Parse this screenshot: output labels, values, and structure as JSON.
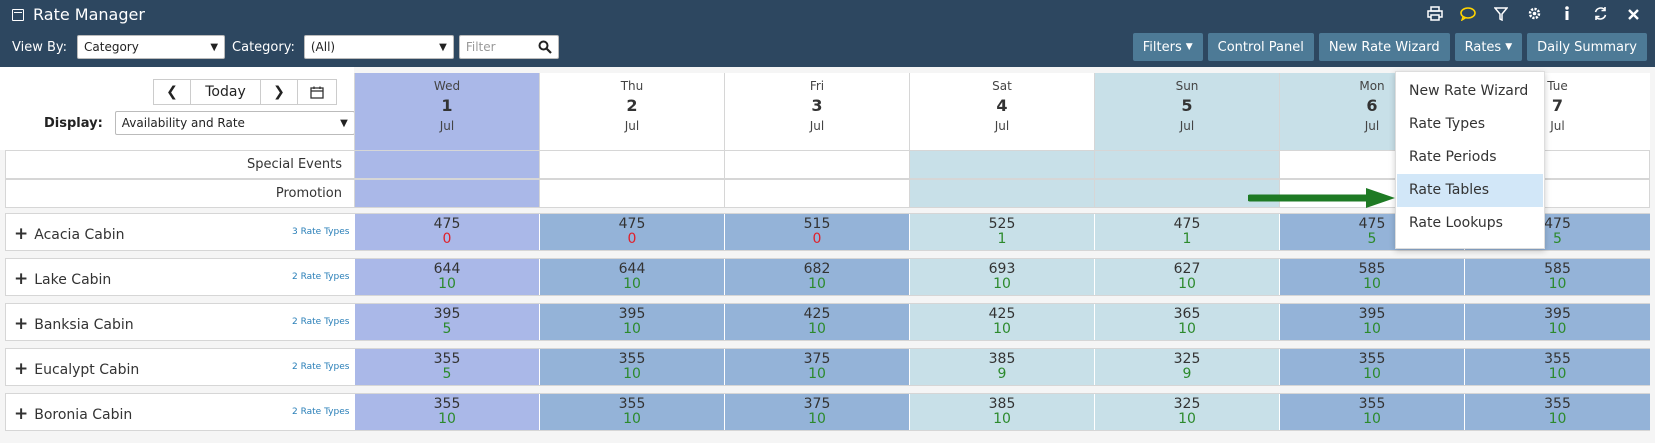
{
  "app": {
    "title": "Rate Manager",
    "title_icon": "calendar-icon"
  },
  "top_icons": [
    "print-icon",
    "chat-icon",
    "filter-icon",
    "gear-icon",
    "info-icon",
    "refresh-icon",
    "close-icon"
  ],
  "filters": {
    "view_by_label": "View By:",
    "view_by_value": "Category",
    "category_label": "Category:",
    "category_value": "(All)",
    "filter_placeholder": "Filter"
  },
  "toolbar": {
    "filters": "Filters",
    "control_panel": "Control Panel",
    "new_rate_wizard": "New Rate Wizard",
    "rates": "Rates",
    "daily_summary": "Daily Summary"
  },
  "nav": {
    "today": "Today"
  },
  "display": {
    "label": "Display:",
    "value": "Availability and Rate"
  },
  "days": [
    {
      "dow": "Wed",
      "num": "1",
      "mon": "Jul"
    },
    {
      "dow": "Thu",
      "num": "2",
      "mon": "Jul"
    },
    {
      "dow": "Fri",
      "num": "3",
      "mon": "Jul"
    },
    {
      "dow": "Sat",
      "num": "4",
      "mon": "Jul"
    },
    {
      "dow": "Sun",
      "num": "5",
      "mon": "Jul"
    },
    {
      "dow": "Mon",
      "num": "6",
      "mon": "Jul"
    },
    {
      "dow": "Tue",
      "num": "7",
      "mon": "Jul"
    }
  ],
  "event_rows": [
    "Special Events",
    "Promotion"
  ],
  "rooms": [
    {
      "name": "Acacia Cabin",
      "rate_types": "3 Rate Types",
      "cells": [
        [
          "475",
          "0"
        ],
        [
          "475",
          "0"
        ],
        [
          "515",
          "0"
        ],
        [
          "525",
          "1"
        ],
        [
          "475",
          "1"
        ],
        [
          "475",
          "5"
        ],
        [
          "475",
          "5"
        ]
      ]
    },
    {
      "name": "Lake Cabin",
      "rate_types": "2 Rate Types",
      "cells": [
        [
          "644",
          "10"
        ],
        [
          "644",
          "10"
        ],
        [
          "682",
          "10"
        ],
        [
          "693",
          "10"
        ],
        [
          "627",
          "10"
        ],
        [
          "585",
          "10"
        ],
        [
          "585",
          "10"
        ]
      ]
    },
    {
      "name": "Banksia Cabin",
      "rate_types": "2 Rate Types",
      "cells": [
        [
          "395",
          "5"
        ],
        [
          "395",
          "10"
        ],
        [
          "425",
          "10"
        ],
        [
          "425",
          "10"
        ],
        [
          "365",
          "10"
        ],
        [
          "395",
          "10"
        ],
        [
          "395",
          "10"
        ]
      ]
    },
    {
      "name": "Eucalypt Cabin",
      "rate_types": "2 Rate Types",
      "cells": [
        [
          "355",
          "5"
        ],
        [
          "355",
          "10"
        ],
        [
          "375",
          "10"
        ],
        [
          "385",
          "9"
        ],
        [
          "325",
          "9"
        ],
        [
          "355",
          "10"
        ],
        [
          "355",
          "10"
        ]
      ]
    },
    {
      "name": "Boronia Cabin",
      "rate_types": "2 Rate Types",
      "cells": [
        [
          "355",
          "10"
        ],
        [
          "355",
          "10"
        ],
        [
          "375",
          "10"
        ],
        [
          "385",
          "10"
        ],
        [
          "325",
          "10"
        ],
        [
          "355",
          "10"
        ],
        [
          "355",
          "10"
        ]
      ]
    }
  ],
  "rates_menu": [
    {
      "label": "New Rate Wizard",
      "active": false
    },
    {
      "label": "Rate Types",
      "active": false
    },
    {
      "label": "Rate Periods",
      "active": false
    },
    {
      "label": "Rate Tables",
      "active": true
    },
    {
      "label": "Rate Lookups",
      "active": false
    }
  ],
  "colors": {
    "topbar": "#2d4760",
    "button": "#4d7a96",
    "today_col": "#aab8e8",
    "weekday_col": "#94b3d8",
    "weekend_col": "#c8e0e8",
    "zero_red": "#e0202a",
    "avail_green": "#2c8a2c",
    "arrow": "#1e7a24",
    "menu_active": "#d2e7f8"
  }
}
